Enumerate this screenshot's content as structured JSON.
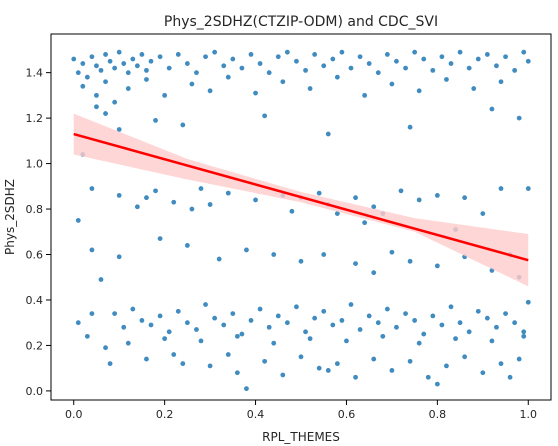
{
  "chart_data": {
    "type": "scatter",
    "title": "Phys_2SDHZ(CTZIP-ODM) and CDC_SVI",
    "xlabel": "RPL_THEMES",
    "ylabel": "Phys_2SDHZ",
    "xlim": [
      -0.05,
      1.05
    ],
    "ylim": [
      -0.04,
      1.57
    ],
    "xticks": [
      0.0,
      0.2,
      0.4,
      0.6,
      0.8,
      1.0
    ],
    "xtick_labels": [
      "0.0",
      "0.2",
      "0.4",
      "0.6",
      "0.8",
      "1.0"
    ],
    "yticks": [
      0.0,
      0.2,
      0.4,
      0.6,
      0.8,
      1.0,
      1.2,
      1.4
    ],
    "ytick_labels": [
      "0.0",
      "0.2",
      "0.4",
      "0.6",
      "0.8",
      "1.0",
      "1.2",
      "1.4"
    ],
    "grid": false,
    "points": [
      [
        0.0,
        1.46
      ],
      [
        0.01,
        1.4
      ],
      [
        0.02,
        1.44
      ],
      [
        0.03,
        1.38
      ],
      [
        0.04,
        1.47
      ],
      [
        0.05,
        1.43
      ],
      [
        0.06,
        1.41
      ],
      [
        0.07,
        1.48
      ],
      [
        0.08,
        1.45
      ],
      [
        0.09,
        1.42
      ],
      [
        0.1,
        1.49
      ],
      [
        0.11,
        1.44
      ],
      [
        0.12,
        1.4
      ],
      [
        0.13,
        1.46
      ],
      [
        0.14,
        1.43
      ],
      [
        0.15,
        1.48
      ],
      [
        0.16,
        1.41
      ],
      [
        0.17,
        1.45
      ],
      [
        0.19,
        1.47
      ],
      [
        0.21,
        1.42
      ],
      [
        0.23,
        1.48
      ],
      [
        0.25,
        1.44
      ],
      [
        0.27,
        1.4
      ],
      [
        0.29,
        1.47
      ],
      [
        0.31,
        1.49
      ],
      [
        0.33,
        1.43
      ],
      [
        0.35,
        1.46
      ],
      [
        0.37,
        1.42
      ],
      [
        0.39,
        1.48
      ],
      [
        0.41,
        1.44
      ],
      [
        0.43,
        1.4
      ],
      [
        0.45,
        1.47
      ],
      [
        0.47,
        1.49
      ],
      [
        0.49,
        1.45
      ],
      [
        0.51,
        1.41
      ],
      [
        0.53,
        1.48
      ],
      [
        0.55,
        1.43
      ],
      [
        0.57,
        1.46
      ],
      [
        0.59,
        1.49
      ],
      [
        0.61,
        1.42
      ],
      [
        0.63,
        1.47
      ],
      [
        0.65,
        1.44
      ],
      [
        0.67,
        1.4
      ],
      [
        0.69,
        1.48
      ],
      [
        0.71,
        1.45
      ],
      [
        0.73,
        1.42
      ],
      [
        0.75,
        1.49
      ],
      [
        0.77,
        1.46
      ],
      [
        0.79,
        1.41
      ],
      [
        0.81,
        1.47
      ],
      [
        0.83,
        1.44
      ],
      [
        0.85,
        1.49
      ],
      [
        0.87,
        1.42
      ],
      [
        0.89,
        1.46
      ],
      [
        0.91,
        1.48
      ],
      [
        0.93,
        1.43
      ],
      [
        0.95,
        1.47
      ],
      [
        0.97,
        1.41
      ],
      [
        0.99,
        1.49
      ],
      [
        1.0,
        1.45
      ],
      [
        0.02,
        1.34
      ],
      [
        0.05,
        1.3
      ],
      [
        0.07,
        1.36
      ],
      [
        0.09,
        1.27
      ],
      [
        0.12,
        1.33
      ],
      [
        0.16,
        1.37
      ],
      [
        0.2,
        1.3
      ],
      [
        0.26,
        1.35
      ],
      [
        0.3,
        1.32
      ],
      [
        0.34,
        1.38
      ],
      [
        0.4,
        1.31
      ],
      [
        0.46,
        1.36
      ],
      [
        0.52,
        1.33
      ],
      [
        0.58,
        1.38
      ],
      [
        0.64,
        1.3
      ],
      [
        0.7,
        1.35
      ],
      [
        0.76,
        1.32
      ],
      [
        0.82,
        1.37
      ],
      [
        0.88,
        1.33
      ],
      [
        0.94,
        1.36
      ],
      [
        0.05,
        1.25
      ],
      [
        0.07,
        1.22
      ],
      [
        0.1,
        1.15
      ],
      [
        0.18,
        1.19
      ],
      [
        0.24,
        1.17
      ],
      [
        0.42,
        1.21
      ],
      [
        0.56,
        1.13
      ],
      [
        0.74,
        1.16
      ],
      [
        0.92,
        1.24
      ],
      [
        0.98,
        1.2
      ],
      [
        0.02,
        1.04
      ],
      [
        0.1,
        0.86
      ],
      [
        0.16,
        0.85
      ],
      [
        0.22,
        0.83
      ],
      [
        0.28,
        0.89
      ],
      [
        0.3,
        0.82
      ],
      [
        0.34,
        0.87
      ],
      [
        0.4,
        0.84
      ],
      [
        0.46,
        0.86
      ],
      [
        0.5,
        0.85
      ],
      [
        0.54,
        0.87
      ],
      [
        0.56,
        0.82
      ],
      [
        0.62,
        0.85
      ],
      [
        0.66,
        0.81
      ],
      [
        0.68,
        0.78
      ],
      [
        0.72,
        0.88
      ],
      [
        0.76,
        0.84
      ],
      [
        0.8,
        0.86
      ],
      [
        0.86,
        0.85
      ],
      [
        0.94,
        0.89
      ],
      [
        1.0,
        0.89
      ],
      [
        0.04,
        0.89
      ],
      [
        0.14,
        0.81
      ],
      [
        0.18,
        0.88
      ],
      [
        0.26,
        0.8
      ],
      [
        0.48,
        0.79
      ],
      [
        0.58,
        0.78
      ],
      [
        0.64,
        0.74
      ],
      [
        0.84,
        0.71
      ],
      [
        0.9,
        0.78
      ],
      [
        0.01,
        0.75
      ],
      [
        0.04,
        0.62
      ],
      [
        0.06,
        0.49
      ],
      [
        0.19,
        0.67
      ],
      [
        0.25,
        0.64
      ],
      [
        0.38,
        0.62
      ],
      [
        0.44,
        0.6
      ],
      [
        0.55,
        0.6
      ],
      [
        0.62,
        0.56
      ],
      [
        0.7,
        0.61
      ],
      [
        0.74,
        0.57
      ],
      [
        0.8,
        0.55
      ],
      [
        0.86,
        0.59
      ],
      [
        0.92,
        0.53
      ],
      [
        0.96,
        0.6
      ],
      [
        0.98,
        0.5
      ],
      [
        0.1,
        0.59
      ],
      [
        0.32,
        0.58
      ],
      [
        0.5,
        0.57
      ],
      [
        0.66,
        0.52
      ],
      [
        0.01,
        0.3
      ],
      [
        0.04,
        0.34
      ],
      [
        0.07,
        0.19
      ],
      [
        0.09,
        0.34
      ],
      [
        0.11,
        0.28
      ],
      [
        0.13,
        0.36
      ],
      [
        0.15,
        0.31
      ],
      [
        0.17,
        0.29
      ],
      [
        0.19,
        0.33
      ],
      [
        0.21,
        0.26
      ],
      [
        0.23,
        0.35
      ],
      [
        0.25,
        0.3
      ],
      [
        0.27,
        0.27
      ],
      [
        0.29,
        0.38
      ],
      [
        0.31,
        0.32
      ],
      [
        0.33,
        0.29
      ],
      [
        0.35,
        0.34
      ],
      [
        0.37,
        0.25
      ],
      [
        0.39,
        0.31
      ],
      [
        0.41,
        0.36
      ],
      [
        0.43,
        0.28
      ],
      [
        0.45,
        0.33
      ],
      [
        0.47,
        0.3
      ],
      [
        0.49,
        0.37
      ],
      [
        0.51,
        0.26
      ],
      [
        0.53,
        0.32
      ],
      [
        0.55,
        0.35
      ],
      [
        0.57,
        0.29
      ],
      [
        0.59,
        0.31
      ],
      [
        0.61,
        0.38
      ],
      [
        0.63,
        0.27
      ],
      [
        0.65,
        0.33
      ],
      [
        0.67,
        0.3
      ],
      [
        0.69,
        0.36
      ],
      [
        0.71,
        0.28
      ],
      [
        0.73,
        0.34
      ],
      [
        0.75,
        0.31
      ],
      [
        0.77,
        0.25
      ],
      [
        0.79,
        0.33
      ],
      [
        0.81,
        0.29
      ],
      [
        0.83,
        0.37
      ],
      [
        0.85,
        0.3
      ],
      [
        0.87,
        0.26
      ],
      [
        0.89,
        0.35
      ],
      [
        0.91,
        0.32
      ],
      [
        0.93,
        0.28
      ],
      [
        0.95,
        0.34
      ],
      [
        0.97,
        0.3
      ],
      [
        0.99,
        0.26
      ],
      [
        1.0,
        0.39
      ],
      [
        0.03,
        0.24
      ],
      [
        0.12,
        0.21
      ],
      [
        0.2,
        0.23
      ],
      [
        0.28,
        0.22
      ],
      [
        0.36,
        0.24
      ],
      [
        0.44,
        0.21
      ],
      [
        0.52,
        0.23
      ],
      [
        0.6,
        0.22
      ],
      [
        0.68,
        0.24
      ],
      [
        0.76,
        0.21
      ],
      [
        0.84,
        0.23
      ],
      [
        0.92,
        0.22
      ],
      [
        0.99,
        0.24
      ],
      [
        0.08,
        0.12
      ],
      [
        0.16,
        0.14
      ],
      [
        0.22,
        0.16
      ],
      [
        0.3,
        0.11
      ],
      [
        0.36,
        0.08
      ],
      [
        0.38,
        0.01
      ],
      [
        0.42,
        0.13
      ],
      [
        0.46,
        0.07
      ],
      [
        0.5,
        0.15
      ],
      [
        0.54,
        0.1
      ],
      [
        0.58,
        0.12
      ],
      [
        0.62,
        0.06
      ],
      [
        0.66,
        0.14
      ],
      [
        0.7,
        0.09
      ],
      [
        0.74,
        0.13
      ],
      [
        0.78,
        0.06
      ],
      [
        0.8,
        0.03
      ],
      [
        0.82,
        0.11
      ],
      [
        0.86,
        0.15
      ],
      [
        0.9,
        0.08
      ],
      [
        0.94,
        0.12
      ],
      [
        0.96,
        0.06
      ],
      [
        0.98,
        0.14
      ],
      [
        0.24,
        0.12
      ],
      [
        0.34,
        0.16
      ],
      [
        0.56,
        0.09
      ]
    ],
    "regression": {
      "x": [
        0.0,
        1.0
      ],
      "y": [
        1.13,
        0.575
      ]
    },
    "confidence_band": {
      "x": [
        0.0,
        0.25,
        0.5,
        0.75,
        1.0
      ],
      "upper": [
        1.22,
        1.02,
        0.875,
        0.76,
        0.69
      ],
      "lower": [
        1.04,
        0.93,
        0.83,
        0.7,
        0.46
      ]
    },
    "point_color": "#1f77b4",
    "line_color": "#ff0000",
    "band_color": "#ffcccc"
  }
}
